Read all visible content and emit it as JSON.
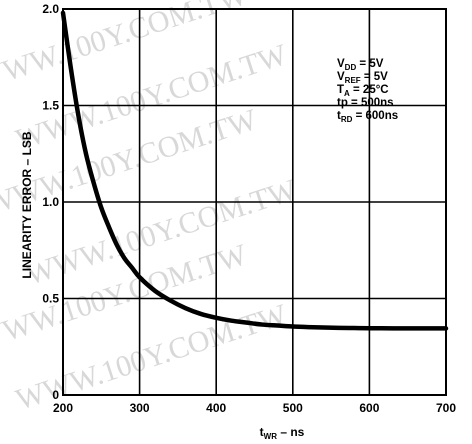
{
  "chart_data": {
    "type": "line",
    "title": "",
    "xlabel": {
      "base": "t",
      "sub": "WR",
      "rest": " – ns"
    },
    "ylabel": "LINEARITY ERROR – LSB",
    "xlim": [
      200,
      700
    ],
    "ylim": [
      0,
      2.0
    ],
    "x_ticks": [
      200,
      300,
      400,
      500,
      600,
      700
    ],
    "x_tick_labels": [
      "200",
      "300",
      "400",
      "500",
      "600",
      "700"
    ],
    "y_ticks": [
      0,
      0.5,
      1.0,
      1.5,
      2.0
    ],
    "y_tick_labels": [
      "0",
      "0.5",
      "1.0",
      "1.5",
      "2.0"
    ],
    "grid": true,
    "series": [
      {
        "x": [
          200,
          210,
          220,
          230,
          240,
          250,
          260,
          270,
          280,
          290,
          300,
          320,
          340,
          360,
          380,
          400,
          420,
          440,
          460,
          480,
          500,
          520,
          540,
          560,
          580,
          600,
          650,
          700
        ],
        "y": [
          1.98,
          1.7,
          1.45,
          1.25,
          1.1,
          0.97,
          0.87,
          0.78,
          0.71,
          0.66,
          0.61,
          0.54,
          0.49,
          0.45,
          0.42,
          0.4,
          0.385,
          0.375,
          0.365,
          0.36,
          0.355,
          0.352,
          0.35,
          0.348,
          0.347,
          0.346,
          0.345,
          0.345
        ]
      }
    ],
    "conditions": [
      {
        "base": "V",
        "sub": "DD",
        "rest": " = 5V"
      },
      {
        "base": "V",
        "sub": "REF",
        "rest": " = 5V"
      },
      {
        "base": "T",
        "sub": "A",
        "rest": " = 25°C"
      },
      {
        "base": "tp",
        "sub": "",
        "rest": " = 500ns"
      },
      {
        "base": "t",
        "sub": "RD",
        "rest": " = 600ns"
      }
    ],
    "watermark": "WWW.100Y.COM.TW",
    "colors": {
      "line": "#000000",
      "grid": "#000000",
      "background": "#ffffff",
      "watermark": "#d8d8d8"
    }
  }
}
